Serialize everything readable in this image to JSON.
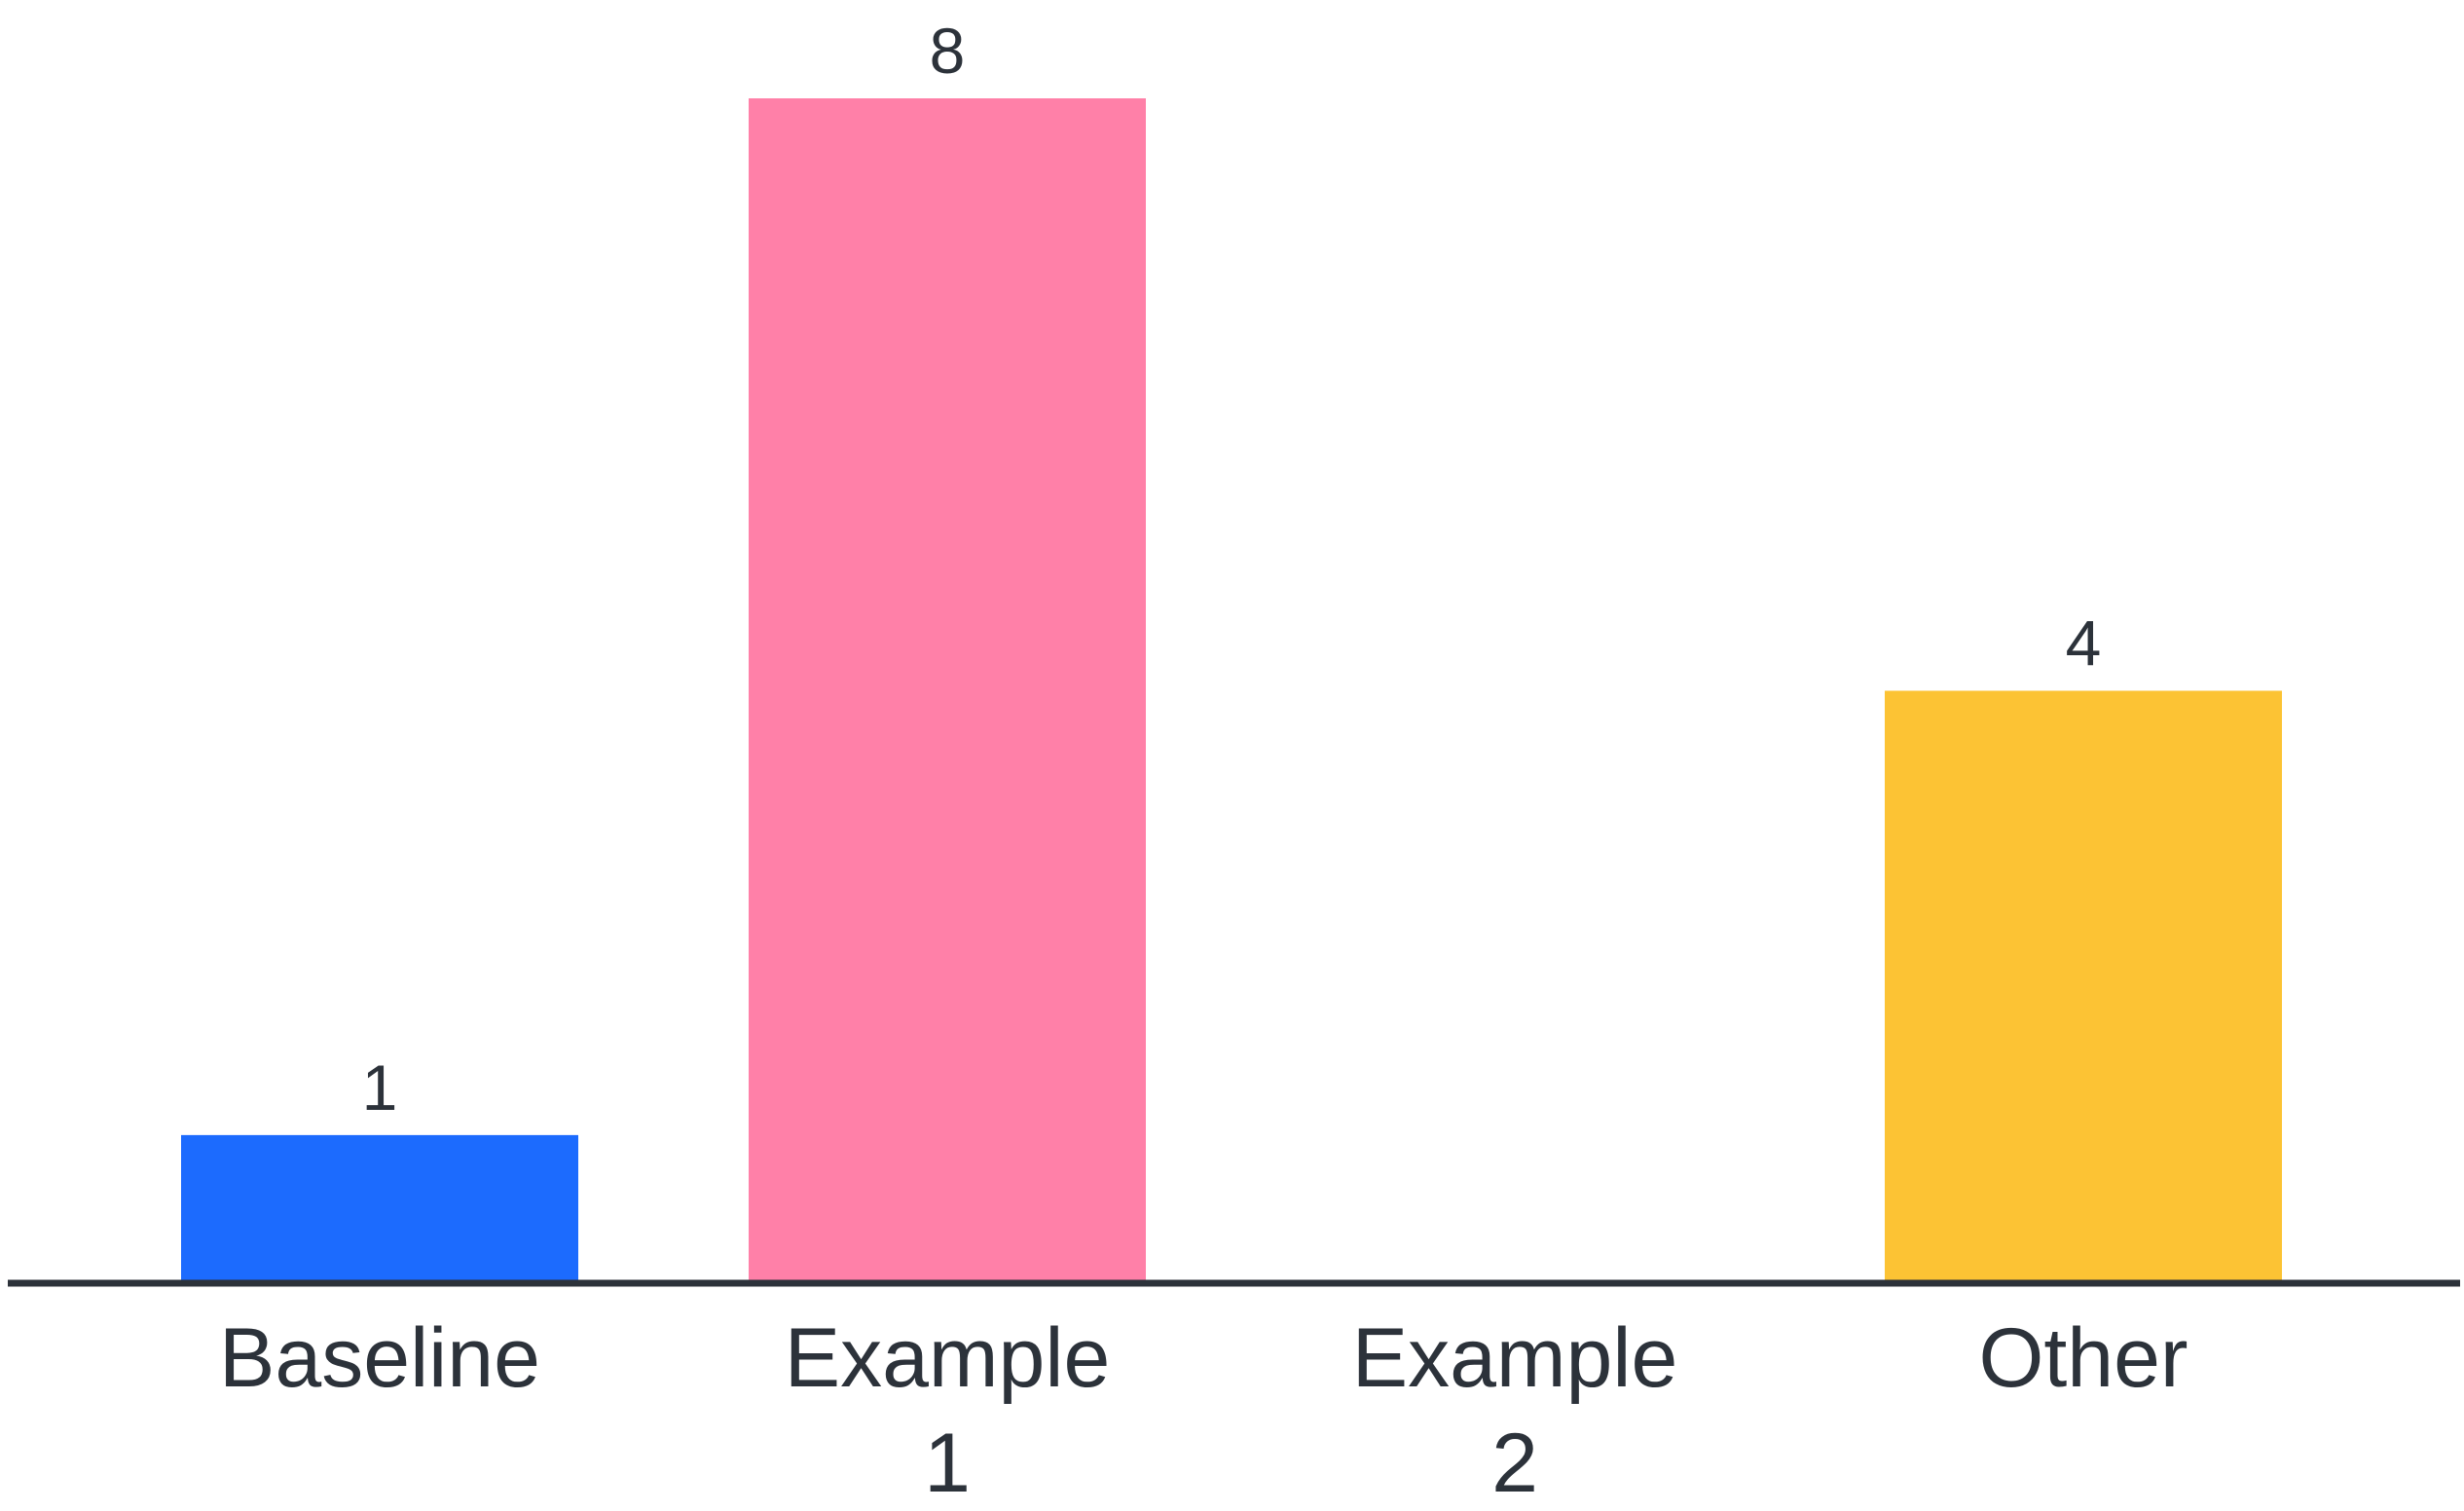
{
  "chart_data": {
    "type": "bar",
    "categories": [
      "Baseline",
      "Example 1",
      "Example 2",
      "Other"
    ],
    "category_lines": [
      [
        "Baseline"
      ],
      [
        "Example",
        "1"
      ],
      [
        "Example",
        "2"
      ],
      [
        "Other"
      ]
    ],
    "values": [
      1,
      8,
      0,
      4
    ],
    "data_labels": [
      "1",
      "8",
      "",
      "4"
    ],
    "colors": [
      "#1c6bfe",
      "#ff80a8",
      "#ffffff",
      "#fcc334"
    ],
    "axis_color": "#2c323a",
    "text_color": "#2c323a",
    "title": "",
    "xlabel": "",
    "ylabel": "",
    "ylim": [
      0,
      8
    ],
    "grid": false,
    "legend": "none"
  }
}
